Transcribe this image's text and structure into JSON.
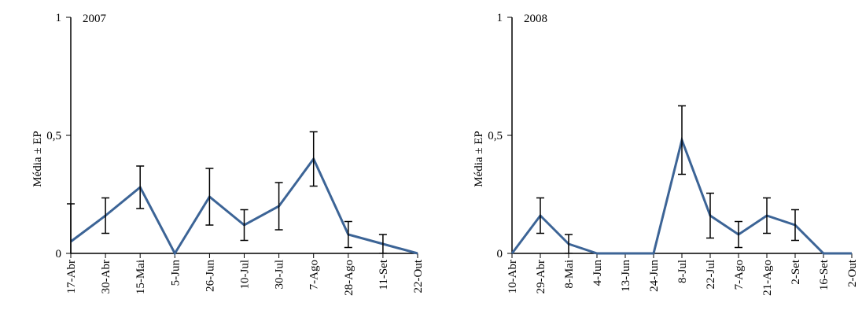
{
  "chart_data": [
    {
      "type": "line",
      "annotation": "2007",
      "y_label": "Média ± EP",
      "categories": [
        "17-Abr",
        "30-Abr",
        "15-Mai",
        "5-Jun",
        "26-Jun",
        "10-Jul",
        "30-Jul",
        "7-Ago",
        "28-Ago",
        "11-Set",
        "22-Out"
      ],
      "series": [
        {
          "color": "#3c6496",
          "values": [
            0.05,
            0.16,
            0.28,
            0,
            0.24,
            0.12,
            0.2,
            0.4,
            0.08,
            0.04,
            0
          ],
          "errors": [
            0.16,
            0.075,
            0.09,
            null,
            0.12,
            0.065,
            0.1,
            0.115,
            0.055,
            0.04,
            null
          ]
        }
      ],
      "ylim": [
        0,
        1
      ],
      "yticks": [
        0,
        {
          "value": 0.5,
          "label": "0,5"
        },
        1
      ]
    },
    {
      "type": "line",
      "annotation": "2008",
      "y_label": "Média ± EP",
      "categories": [
        "10-Abr",
        "29-Abr",
        "8-Mai",
        "4-Jun",
        "13-Jun",
        "24-Jun",
        "8-Jul",
        "22-Jul",
        "7-Ago",
        "21-Ago",
        "2-Set",
        "16-Set",
        "2-Out"
      ],
      "series": [
        {
          "color": "#3c6496",
          "values": [
            0,
            0.16,
            0.04,
            0,
            0,
            0,
            0.48,
            0.16,
            0.08,
            0.16,
            0.12,
            0,
            0
          ],
          "errors": [
            null,
            0.075,
            0.04,
            null,
            null,
            null,
            0.145,
            0.095,
            0.055,
            0.075,
            0.065,
            null,
            null
          ]
        }
      ],
      "ylim": [
        0,
        1
      ],
      "yticks": [
        0,
        {
          "value": 0.5,
          "label": "0,5"
        },
        1
      ]
    }
  ]
}
